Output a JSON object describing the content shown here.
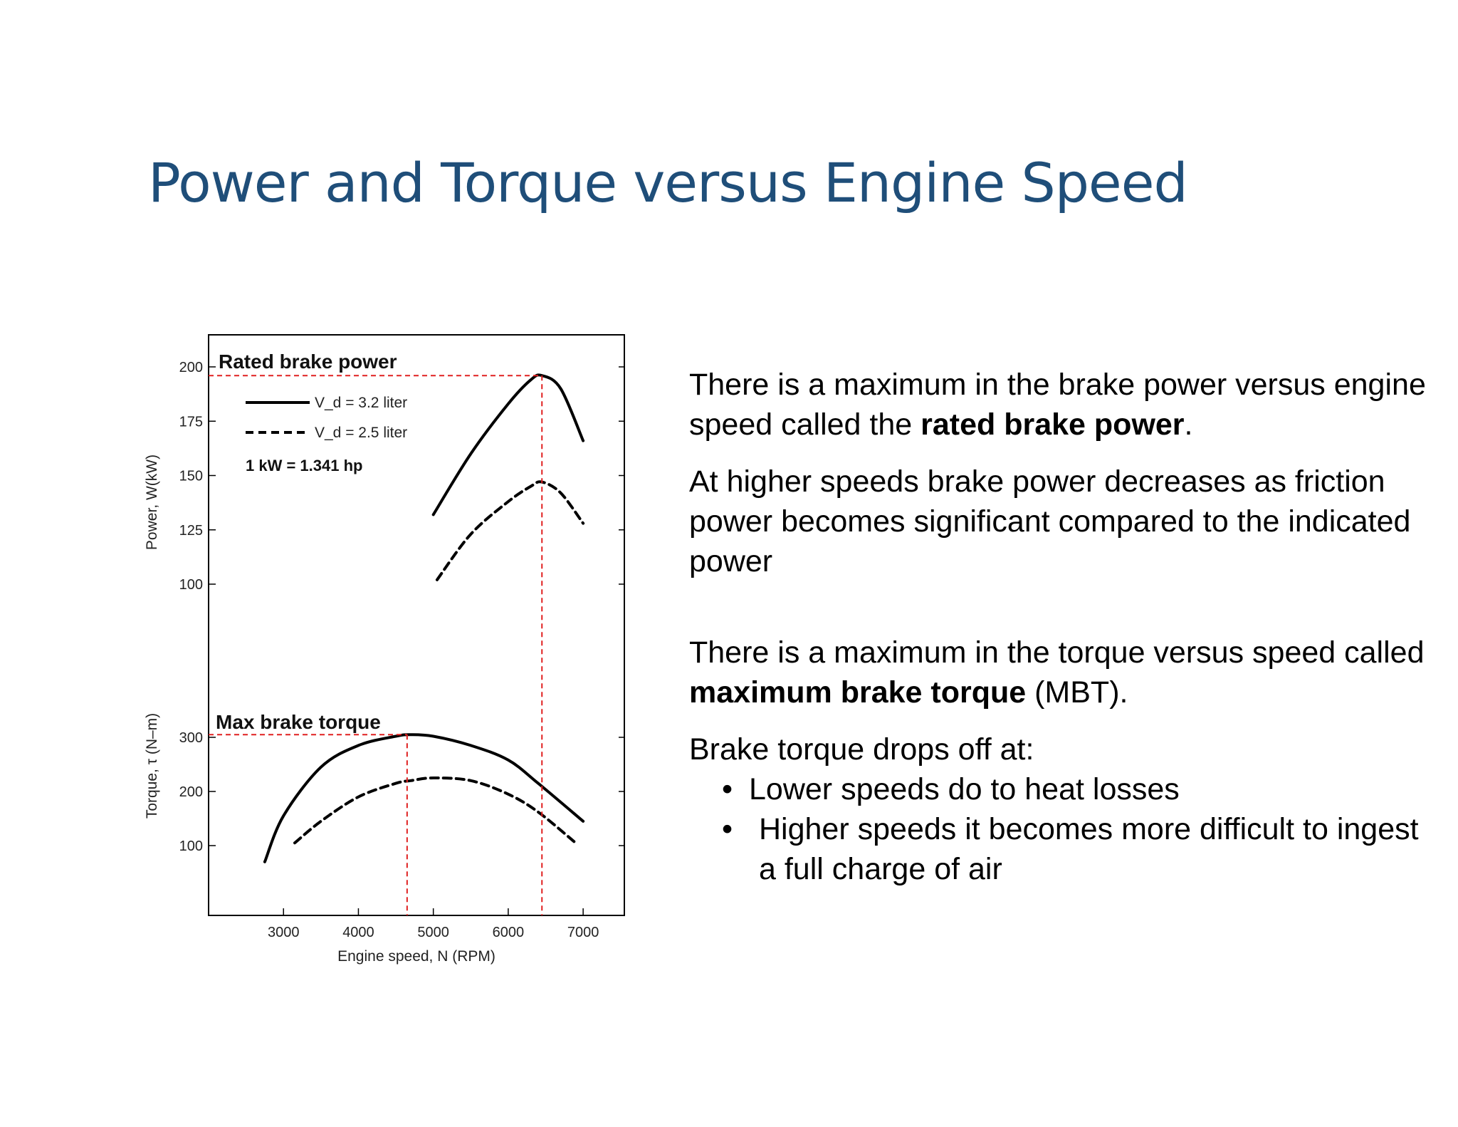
{
  "slide": {
    "title": "Power and Torque versus Engine Speed"
  },
  "text_panel": {
    "p1_part1": "There is a maximum in the brake power versus engine speed called the ",
    "p1_bold": "rated brake power",
    "p1_part2": ".",
    "p2": "At higher speeds brake power decreases as friction power becomes significant compared to the indicated power",
    "p3_part1": "There is a maximum in the torque versus speed called ",
    "p3_bold": "maximum brake torque",
    "p3_part2": " (MBT).",
    "p4": "Brake torque drops off at:",
    "bullets": [
      "Lower speeds do to heat losses",
      "Higher speeds it becomes more difficult to ingest a full charge of air"
    ]
  },
  "colors": {
    "title": "#1f4e79",
    "annotation": "#e02020",
    "curve": "#000000"
  },
  "chart_data": {
    "type": "line",
    "xlabel": "Engine speed, N (RPM)",
    "x_ticks": [
      3000,
      4000,
      5000,
      6000,
      7000
    ],
    "xlim": [
      2000,
      7550
    ],
    "legend": [
      {
        "label": "V_d = 3.2 liter",
        "style": "solid"
      },
      {
        "label": "V_d = 2.5 liter",
        "style": "dashed"
      }
    ],
    "conversion_note": "1 kW = 1.341 hp",
    "power_panel": {
      "ylabel": "Power, W(kW)",
      "y_ticks": [
        100,
        125,
        150,
        175,
        200
      ],
      "series": [
        {
          "style": "solid",
          "x": [
            5000,
            5500,
            6000,
            6300,
            6450,
            6700,
            7000
          ],
          "y": [
            132,
            160,
            183,
            194,
            196,
            190,
            166
          ]
        },
        {
          "style": "dashed",
          "x": [
            5050,
            5500,
            6000,
            6300,
            6450,
            6700,
            7000
          ],
          "y": [
            102,
            123,
            138,
            145,
            147,
            142,
            128
          ]
        }
      ]
    },
    "torque_panel": {
      "ylabel": "Torque, τ (N–m)",
      "y_ticks": [
        100,
        200,
        300
      ],
      "series": [
        {
          "style": "solid",
          "x": [
            2750,
            3000,
            3500,
            4000,
            4500,
            4700,
            5000,
            5500,
            6000,
            6400,
            7000
          ],
          "y": [
            70,
            155,
            245,
            285,
            302,
            305,
            302,
            285,
            258,
            215,
            145
          ]
        },
        {
          "style": "dashed",
          "x": [
            3150,
            3500,
            4000,
            4500,
            4700,
            5000,
            5500,
            6000,
            6400,
            6900
          ],
          "y": [
            105,
            145,
            190,
            215,
            220,
            225,
            220,
            195,
            162,
            105
          ]
        }
      ]
    },
    "annotations": {
      "rated_power_label": "Rated brake power",
      "rated_power": {
        "x": 6450,
        "y": 196
      },
      "max_torque_label": "Max brake torque",
      "max_torque": {
        "x": 4650,
        "y": 305
      }
    }
  }
}
